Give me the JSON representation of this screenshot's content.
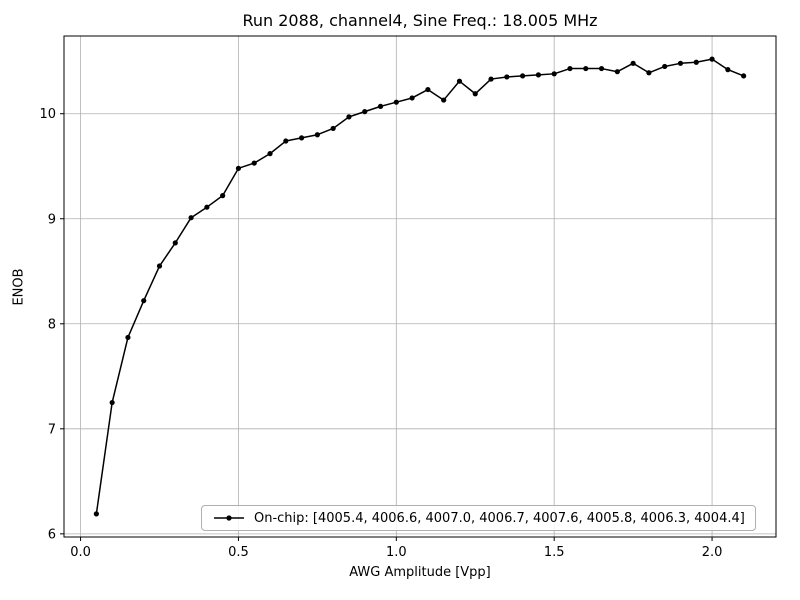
{
  "chart_data": {
    "type": "line",
    "title": "Run 2088, channel4, Sine Freq.: 18.005 MHz",
    "xlabel": "AWG Amplitude [Vpp]",
    "ylabel": "ENOB",
    "xlim": [
      -0.0525,
      2.2025
    ],
    "ylim": [
      5.97,
      10.74
    ],
    "x_ticks": [
      0.0,
      0.5,
      1.0,
      1.5,
      2.0
    ],
    "x_tick_labels": [
      "0.0",
      "0.5",
      "1.0",
      "1.5",
      "2.0"
    ],
    "y_ticks": [
      6,
      7,
      8,
      9,
      10
    ],
    "y_tick_labels": [
      "6",
      "7",
      "8",
      "9",
      "10"
    ],
    "grid": true,
    "colors": {
      "line": "#000000",
      "grid": "#b0b0b0",
      "spine": "#000000"
    },
    "legend": {
      "position": "lower center",
      "label": "On-chip: [4005.4, 4006.6, 4007.0, 4006.7, 4007.6, 4005.8, 4006.3, 4004.4]"
    },
    "series": [
      {
        "name": "On-chip",
        "color": "#000000",
        "marker": "circle",
        "x": [
          0.05,
          0.1,
          0.15,
          0.2,
          0.25,
          0.3,
          0.35,
          0.4,
          0.45,
          0.5,
          0.55,
          0.6,
          0.65,
          0.7,
          0.75,
          0.8,
          0.85,
          0.9,
          0.95,
          1.0,
          1.05,
          1.1,
          1.15,
          1.2,
          1.25,
          1.3,
          1.35,
          1.4,
          1.45,
          1.5,
          1.55,
          1.6,
          1.65,
          1.7,
          1.75,
          1.8,
          1.85,
          1.9,
          1.95,
          2.0,
          2.05,
          2.1
        ],
        "y": [
          6.19,
          7.25,
          7.87,
          8.22,
          8.55,
          8.77,
          9.01,
          9.11,
          9.22,
          9.48,
          9.53,
          9.62,
          9.74,
          9.77,
          9.8,
          9.86,
          9.97,
          10.02,
          10.07,
          10.11,
          10.15,
          10.23,
          10.13,
          10.31,
          10.19,
          10.33,
          10.35,
          10.36,
          10.37,
          10.38,
          10.43,
          10.43,
          10.43,
          10.4,
          10.48,
          10.39,
          10.45,
          10.48,
          10.49,
          10.52,
          10.42,
          10.36
        ]
      }
    ]
  }
}
